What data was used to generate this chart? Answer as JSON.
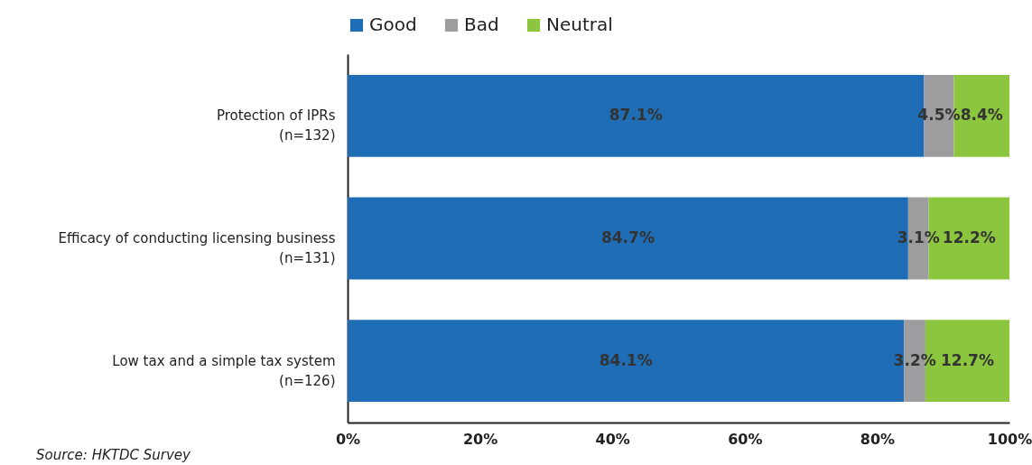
{
  "chart_data": {
    "type": "bar",
    "orientation": "horizontal",
    "stacked": true,
    "categories": [
      "Protection of IPRs\n(n=132)",
      "Efficacy of conducting licensing business\n(n=131)",
      "Low tax and a simple tax system\n(n=126)"
    ],
    "series": [
      {
        "name": "Good",
        "color": "#1f6db5",
        "values": [
          87.1,
          84.7,
          84.1
        ]
      },
      {
        "name": "Bad",
        "color": "#9d9d9f",
        "values": [
          4.5,
          3.1,
          3.2
        ]
      },
      {
        "name": "Neutral",
        "color": "#8cc63e",
        "values": [
          8.4,
          12.2,
          12.7
        ]
      }
    ],
    "xlim": [
      0,
      100
    ],
    "xticks": [
      {
        "value": 0,
        "label": "0%"
      },
      {
        "value": 20,
        "label": "20%"
      },
      {
        "value": 40,
        "label": "40%"
      },
      {
        "value": 60,
        "label": "60%"
      },
      {
        "value": 80,
        "label": "80%"
      },
      {
        "value": 100,
        "label": "100%"
      }
    ],
    "value_labels": [
      [
        "87.1%",
        "84.7%",
        "84.1%"
      ],
      [
        "4.5%",
        "3.1%",
        "3.2%"
      ],
      [
        "8.4%",
        "12.2%",
        "12.7%"
      ]
    ],
    "grid": false,
    "legend": "top",
    "annotations": [
      "Source: HKTDC Survey"
    ]
  }
}
